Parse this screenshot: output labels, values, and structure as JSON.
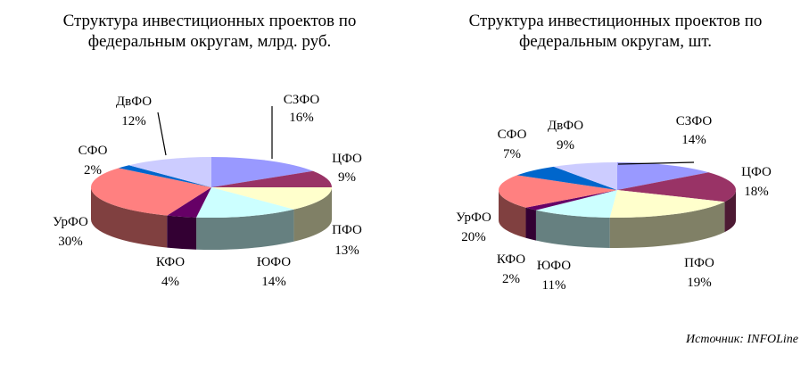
{
  "source_prefix": "Источник:",
  "source_name": "INFOLine",
  "chart_data": [
    {
      "type": "pie",
      "title_line1": "Структура инвестиционных проектов по",
      "title_line2": "федеральным округам, млрд. руб.",
      "slices": [
        {
          "name": "СЗФО",
          "value": 16,
          "label": "16%",
          "color": "#9999ff"
        },
        {
          "name": "ЦФО",
          "value": 9,
          "label": "9%",
          "color": "#993366"
        },
        {
          "name": "ПФО",
          "value": 13,
          "label": "13%",
          "color": "#ffffcc"
        },
        {
          "name": "ЮФО",
          "value": 14,
          "label": "14%",
          "color": "#ccffff"
        },
        {
          "name": "КФО",
          "value": 4,
          "label": "4%",
          "color": "#660066"
        },
        {
          "name": "УрФО",
          "value": 30,
          "label": "30%",
          "color": "#ff8080"
        },
        {
          "name": "СФО",
          "value": 2,
          "label": "2%",
          "color": "#0066cc"
        },
        {
          "name": "ДвФО",
          "value": 12,
          "label": "12%",
          "color": "#ccccff"
        }
      ]
    },
    {
      "type": "pie",
      "title_line1": "Структура инвестиционных проектов по",
      "title_line2": "федеральным округам, шт.",
      "slices": [
        {
          "name": "СЗФО",
          "value": 14,
          "label": "14%",
          "color": "#9999ff"
        },
        {
          "name": "ЦФО",
          "value": 18,
          "label": "18%",
          "color": "#993366"
        },
        {
          "name": "ПФО",
          "value": 19,
          "label": "19%",
          "color": "#ffffcc"
        },
        {
          "name": "ЮФО",
          "value": 11,
          "label": "11%",
          "color": "#ccffff"
        },
        {
          "name": "КФО",
          "value": 2,
          "label": "2%",
          "color": "#660066"
        },
        {
          "name": "УрФО",
          "value": 20,
          "label": "20%",
          "color": "#ff8080"
        },
        {
          "name": "СФО",
          "value": 7,
          "label": "7%",
          "color": "#0066cc"
        },
        {
          "name": "ДвФО",
          "value": 9,
          "label": "9%",
          "color": "#ccccff"
        }
      ]
    }
  ]
}
